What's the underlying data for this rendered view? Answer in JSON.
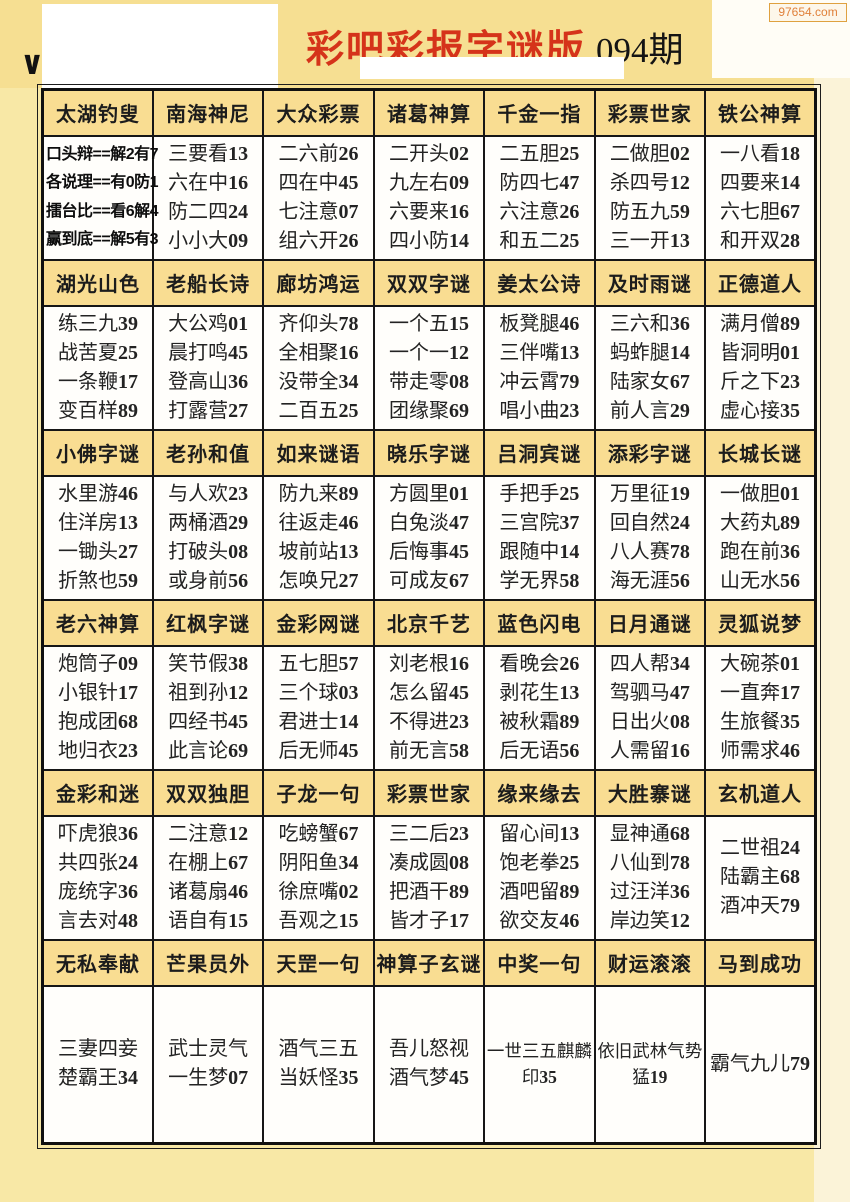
{
  "watermark": {
    "label": "97654.com"
  },
  "title": {
    "main": "彩吧彩报字谜版",
    "issue": "094期"
  },
  "colors": {
    "page_bg": "#f8e8a6",
    "header_cell_bg": "#f9dd92",
    "title_red": "#d5331a",
    "watermark_orange": "#e0813a",
    "grid_border": "#161616"
  },
  "sections": [
    {
      "headers": [
        "太湖钓叟",
        "南海神尼",
        "大众彩票",
        "诸葛神算",
        "千金一指",
        "彩票世家",
        "铁公神算"
      ],
      "cells": [
        [
          "口头辩==解2有7",
          "各说理==有0防1",
          "擂台比==看6解4",
          "赢到底==解5有3"
        ],
        [
          "三要看13",
          "六在中16",
          "防二四24",
          "小小大09"
        ],
        [
          "二六前26",
          "四在中45",
          "七注意07",
          "组六开26"
        ],
        [
          "二开头02",
          "九左右09",
          "六要来16",
          "四小防14"
        ],
        [
          "二五胆25",
          "防四七47",
          "六注意26",
          "和五二25"
        ],
        [
          "二做胆02",
          "杀四号12",
          "防五九59",
          "三一开13"
        ],
        [
          "一八看18",
          "四要来14",
          "六七胆67",
          "和开双28"
        ]
      ]
    },
    {
      "headers": [
        "湖光山色",
        "老船长诗",
        "廊坊鸿运",
        "双双字谜",
        "姜太公诗",
        "及时雨谜",
        "正德道人"
      ],
      "cells": [
        [
          "练三九39",
          "战苦夏25",
          "一条鞭17",
          "变百样89"
        ],
        [
          "大公鸡01",
          "晨打鸣45",
          "登高山36",
          "打露营27"
        ],
        [
          "齐仰头78",
          "全相聚16",
          "没带全34",
          "二百五25"
        ],
        [
          "一个五15",
          "一个一12",
          "带走零08",
          "团缘聚69"
        ],
        [
          "板凳腿46",
          "三伴嘴13",
          "冲云霄79",
          "唱小曲23"
        ],
        [
          "三六和36",
          "蚂蚱腿14",
          "陆家女67",
          "前人言29"
        ],
        [
          "满月僧89",
          "皆洞明01",
          "斤之下23",
          "虚心接35"
        ]
      ]
    },
    {
      "headers": [
        "小佛字谜",
        "老孙和值",
        "如来谜语",
        "晓乐字谜",
        "吕洞宾谜",
        "添彩字谜",
        "长城长谜"
      ],
      "cells": [
        [
          "水里游46",
          "住洋房13",
          "一锄头27",
          "折煞也59"
        ],
        [
          "与人欢23",
          "两桶酒29",
          "打破头08",
          "或身前56"
        ],
        [
          "防九来89",
          "往返走46",
          "坡前站13",
          "怎唤兄27"
        ],
        [
          "方圆里01",
          "白兔淡47",
          "后悔事45",
          "可成友67"
        ],
        [
          "手把手25",
          "三宫院37",
          "跟随中14",
          "学无界58"
        ],
        [
          "万里征19",
          "回自然24",
          "八人赛78",
          "海无涯56"
        ],
        [
          "一做胆01",
          "大药丸89",
          "跑在前36",
          "山无水56"
        ]
      ]
    },
    {
      "headers": [
        "老六神算",
        "红枫字谜",
        "金彩网谜",
        "北京千艺",
        "蓝色闪电",
        "日月通谜",
        "灵狐说梦"
      ],
      "cells": [
        [
          "炮筒子09",
          "小银针17",
          "抱成团68",
          "地归衣23"
        ],
        [
          "笑节假38",
          "祖到孙12",
          "四经书45",
          "此言论69"
        ],
        [
          "五七胆57",
          "三个球03",
          "君进士14",
          "后无师45"
        ],
        [
          "刘老根16",
          "怎么留45",
          "不得进23",
          "前无言58"
        ],
        [
          "看晚会26",
          "剥花生13",
          "被秋霜89",
          "后无语56"
        ],
        [
          "四人帮34",
          "驾驷马47",
          "日出火08",
          "人需留16"
        ],
        [
          "大碗茶01",
          "一直奔17",
          "生旅餐35",
          "师需求46"
        ]
      ]
    },
    {
      "headers": [
        "金彩和迷",
        "双双独胆",
        "子龙一句",
        "彩票世家",
        "缘来缘去",
        "大胜寨谜",
        "玄机道人"
      ],
      "cells": [
        [
          "吓虎狼36",
          "共四张24",
          "庞统字36",
          "言去对48"
        ],
        [
          "二注意12",
          "在棚上67",
          "诸葛扇46",
          "语自有15"
        ],
        [
          "吃螃蟹67",
          "阴阳鱼34",
          "徐庶嘴02",
          "吾观之15"
        ],
        [
          "三二后23",
          "凑成圆08",
          "把酒干89",
          "皆才子17"
        ],
        [
          "留心间13",
          "饱老拳25",
          "酒吧留89",
          "欲交友46"
        ],
        [
          "显神通68",
          "八仙到78",
          "过汪洋36",
          "岸边笑12"
        ],
        [
          "二世祖24",
          "陆霸主68",
          "酒冲天79"
        ]
      ]
    },
    {
      "headers": [
        "无私奉献",
        "芒果员外",
        "天罡一句",
        "神算子玄谜",
        "中奖一句",
        "财运滚滚",
        "马到成功"
      ],
      "cells": [
        [
          "三妻四妾",
          "楚霸王34"
        ],
        [
          "武士灵气",
          "一生梦07"
        ],
        [
          "酒气三五",
          "当妖怪35"
        ],
        [
          "吾儿怒视",
          "酒气梦45"
        ],
        [
          "一世三五麒麟印35"
        ],
        [
          "依旧武林气势猛19"
        ],
        [
          "霸气九儿79"
        ]
      ]
    }
  ]
}
